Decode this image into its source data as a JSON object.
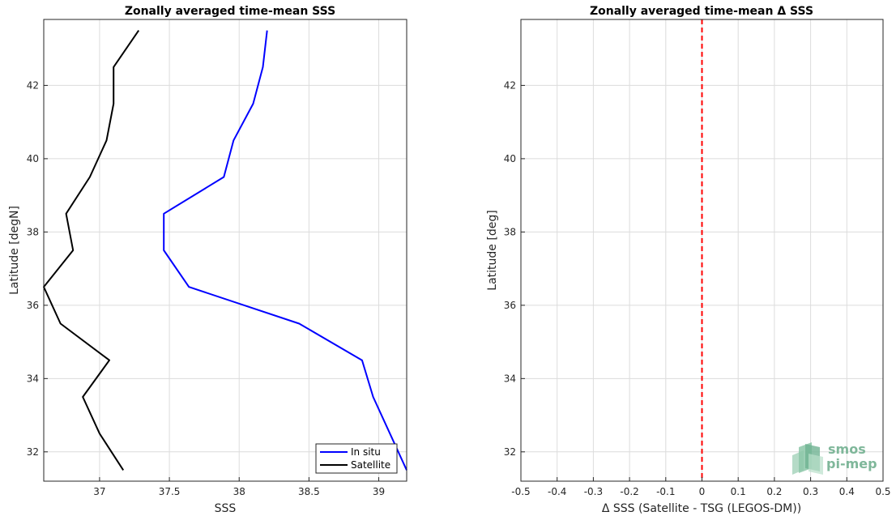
{
  "chart_data": [
    {
      "type": "line",
      "title": "Zonally averaged time-mean SSS",
      "xlabel": "SSS",
      "ylabel": "Latitude [degN]",
      "xlim": [
        36.6,
        39.2
      ],
      "ylim": [
        31.2,
        43.8
      ],
      "xticks": [
        "37",
        "37.5",
        "38",
        "38.5",
        "39"
      ],
      "xtick_values": [
        37,
        37.5,
        38,
        38.5,
        39
      ],
      "yticks": [
        "32",
        "34",
        "36",
        "38",
        "40",
        "42"
      ],
      "ytick_values": [
        32,
        34,
        36,
        38,
        40,
        42
      ],
      "grid": true,
      "legend_position": "bottom-right",
      "series": [
        {
          "name": "In situ",
          "color": "#0000ff",
          "x": [
            38.2,
            38.17,
            38.1,
            37.96,
            37.89,
            37.46,
            37.46,
            37.64,
            38.43,
            38.88,
            38.96,
            39.08,
            39.2
          ],
          "y": [
            43.5,
            42.5,
            41.5,
            40.5,
            39.5,
            38.5,
            37.5,
            36.5,
            35.5,
            34.5,
            33.5,
            32.5,
            31.5
          ]
        },
        {
          "name": "Satellite",
          "color": "#000000",
          "x": [
            37.28,
            37.1,
            37.1,
            37.05,
            36.93,
            36.76,
            36.81,
            36.6,
            36.72,
            37.07,
            36.88,
            37.0,
            37.17
          ],
          "y": [
            43.5,
            42.5,
            41.5,
            40.5,
            39.5,
            38.5,
            37.5,
            36.5,
            35.5,
            34.5,
            33.5,
            32.5,
            31.5
          ]
        }
      ]
    },
    {
      "type": "line",
      "title": "Zonally averaged time-mean Δ SSS",
      "xlabel": "Δ SSS (Satellite - TSG (LEGOS-DM))",
      "ylabel": "Latitude [deg]",
      "xlim": [
        -0.5,
        0.5
      ],
      "ylim": [
        31.2,
        43.8
      ],
      "xticks": [
        "-0.5",
        "-0.4",
        "-0.3",
        "-0.2",
        "-0.1",
        "0",
        "0.1",
        "0.2",
        "0.3",
        "0.4",
        "0.5"
      ],
      "xtick_values": [
        -0.5,
        -0.4,
        -0.3,
        -0.2,
        -0.1,
        0,
        0.1,
        0.2,
        0.3,
        0.4,
        0.5
      ],
      "yticks": [
        "32",
        "34",
        "36",
        "38",
        "40",
        "42"
      ],
      "ytick_values": [
        32,
        34,
        36,
        38,
        40,
        42
      ],
      "grid": true,
      "reference_line": {
        "x": 0,
        "color": "#ff0000",
        "style": "dashed"
      },
      "logo": {
        "line1": "smos",
        "line2": "pi-mep",
        "color": "#7fb79a"
      }
    }
  ]
}
